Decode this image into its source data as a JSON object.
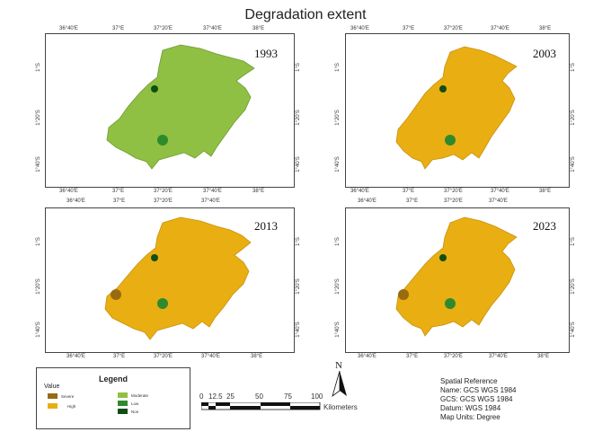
{
  "title": "Degradation extent",
  "panels": [
    {
      "year": "1993",
      "ramp": "moderate"
    },
    {
      "year": "2003",
      "ramp": "high"
    },
    {
      "year": "2013",
      "ramp": "high"
    },
    {
      "year": "2023",
      "ramp": "high"
    }
  ],
  "axis": {
    "top_ticks": [
      "36°40'E",
      "37°E",
      "37°20'E",
      "37°40'E",
      "38°E"
    ],
    "side_ticks": [
      "1°S",
      "1°20'S",
      "1°40'S"
    ]
  },
  "legend": {
    "title": "Legend",
    "value_header": "Value",
    "items": [
      {
        "label": "Severe",
        "color": "#9a6a10"
      },
      {
        "label": "High",
        "color": "#e8ae12"
      },
      {
        "label": "Moderate",
        "color": "#8fc043"
      },
      {
        "label": "Low",
        "color": "#2f8a2e"
      },
      {
        "label": "Non",
        "color": "#0f4f14"
      }
    ]
  },
  "scale_bar": {
    "labels": [
      "0",
      "12.5",
      "25",
      "50",
      "75",
      "100"
    ],
    "unit": "Kilometers"
  },
  "north_arrow": "N",
  "spatial_reference": {
    "heading": "Spatial Reference",
    "name": "Name: GCS WGS 1984",
    "gcs": "GCS: GCS WGS 1984",
    "datum": "Datum: WGS 1984",
    "units": "Map Units: Degree"
  }
}
